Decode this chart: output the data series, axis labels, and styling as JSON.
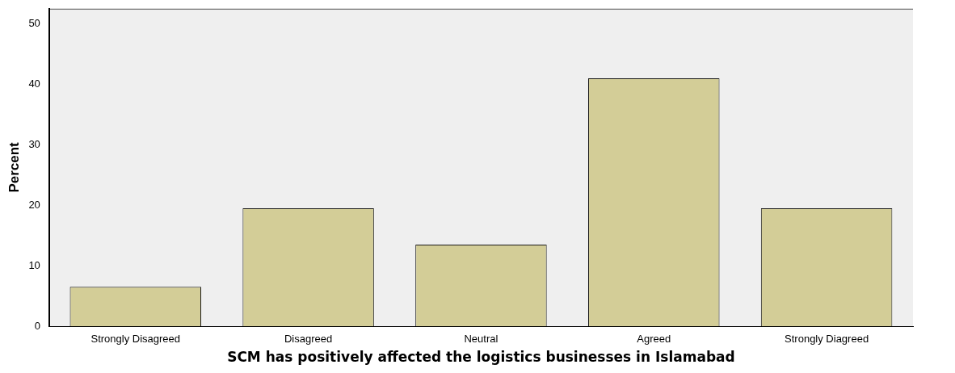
{
  "chart_data": {
    "type": "bar",
    "xlabel": "SCM has positively affected the logistics businesses in Islamabad",
    "ylabel": "Percent",
    "categories": [
      "Strongly Disagreed",
      "Disagreed",
      "Neutral",
      "Agreed",
      "Strongly Diagreed"
    ],
    "values": [
      6.5,
      19.5,
      13.5,
      41,
      19.5
    ],
    "color": "#d3cd97",
    "ylim": [
      0,
      52.5
    ],
    "yticks": [
      0,
      10,
      20,
      30,
      40,
      50
    ],
    "grid": false,
    "legend": false
  }
}
